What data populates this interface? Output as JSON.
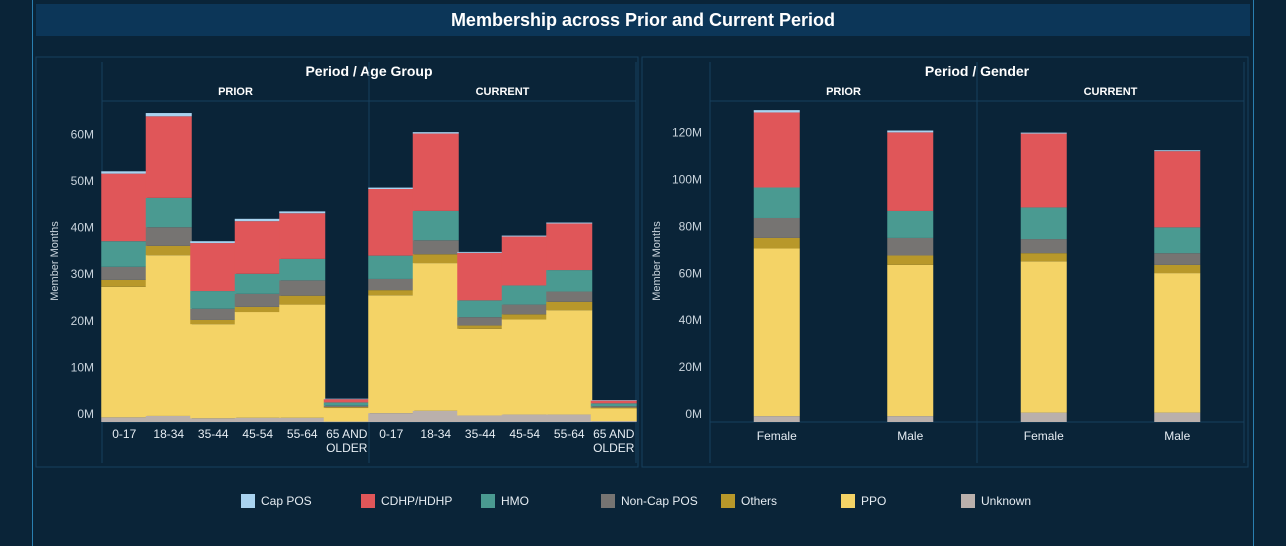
{
  "title": "Membership across Prior and Current Period",
  "colors": {
    "Cap POS": "#a9d3f0",
    "CDHP/HDHP": "#e05659",
    "HMO": "#4a9a91",
    "Non-Cap POS": "#767472",
    "Others": "#b8982a",
    "PPO": "#f4d366",
    "Unknown": "#bab0ac"
  },
  "legend": [
    "Cap POS",
    "CDHP/HDHP",
    "HMO",
    "Non-Cap POS",
    "Others",
    "PPO",
    "Unknown"
  ],
  "chart_data": [
    {
      "type": "bar",
      "stacked": true,
      "title": "Period / Age Group",
      "ylabel": "Member Months",
      "ylim": [
        0,
        68
      ],
      "yticks": [
        "0M",
        "10M",
        "20M",
        "30M",
        "40M",
        "50M",
        "60M"
      ],
      "panels": [
        {
          "label": "PRIOR",
          "categories": [
            "0-17",
            "18-34",
            "35-44",
            "45-54",
            "55-64",
            "65 AND OLDER"
          ],
          "series": [
            {
              "name": "Unknown",
              "values": [
                1.0,
                1.3,
                0.8,
                0.9,
                0.9,
                0.1
              ]
            },
            {
              "name": "PPO",
              "values": [
                28.0,
                34.5,
                20.2,
                22.7,
                24.3,
                2.9
              ]
            },
            {
              "name": "Others",
              "values": [
                1.5,
                2.0,
                0.9,
                1.1,
                1.9,
                0.2
              ]
            },
            {
              "name": "Non-Cap POS",
              "values": [
                2.8,
                4.0,
                2.4,
                2.8,
                3.3,
                0.3
              ]
            },
            {
              "name": "HMO",
              "values": [
                5.5,
                6.3,
                3.8,
                4.3,
                4.6,
                0.7
              ]
            },
            {
              "name": "CDHP/HDHP",
              "values": [
                14.5,
                17.5,
                10.3,
                11.3,
                9.8,
                0.7
              ]
            },
            {
              "name": "Cap POS",
              "values": [
                0.5,
                0.7,
                0.4,
                0.5,
                0.4,
                0.1
              ]
            }
          ]
        },
        {
          "label": "CURRENT",
          "categories": [
            "0-17",
            "18-34",
            "35-44",
            "45-54",
            "55-64",
            "65 AND OLDER"
          ],
          "series": [
            {
              "name": "Unknown",
              "values": [
                1.9,
                2.4,
                1.4,
                1.6,
                1.6,
                0.2
              ]
            },
            {
              "name": "PPO",
              "values": [
                25.3,
                31.7,
                18.6,
                20.4,
                22.4,
                2.7
              ]
            },
            {
              "name": "Others",
              "values": [
                1.1,
                1.9,
                0.7,
                1.1,
                1.8,
                0.2
              ]
            },
            {
              "name": "Non-Cap POS",
              "values": [
                2.4,
                3.0,
                1.8,
                2.1,
                2.2,
                0.3
              ]
            },
            {
              "name": "HMO",
              "values": [
                5.0,
                6.3,
                3.6,
                4.1,
                4.6,
                0.6
              ]
            },
            {
              "name": "CDHP/HDHP",
              "values": [
                14.3,
                16.6,
                10.2,
                10.5,
                10.0,
                0.6
              ]
            },
            {
              "name": "Cap POS",
              "values": [
                0.3,
                0.3,
                0.2,
                0.2,
                0.2,
                0.1
              ]
            }
          ]
        }
      ]
    },
    {
      "type": "bar",
      "stacked": true,
      "title": "Period / Gender",
      "ylabel": "Member Months",
      "ylim": [
        0,
        140
      ],
      "yticks": [
        "0M",
        "20M",
        "40M",
        "60M",
        "80M",
        "100M",
        "120M"
      ],
      "panels": [
        {
          "label": "PRIOR",
          "categories": [
            "Female",
            "Male"
          ],
          "series": [
            {
              "name": "Unknown",
              "values": [
                2.5,
                2.5
              ]
            },
            {
              "name": "PPO",
              "values": [
                71.5,
                64.5
              ]
            },
            {
              "name": "Others",
              "values": [
                4.5,
                4.0
              ]
            },
            {
              "name": "Non-Cap POS",
              "values": [
                8.5,
                7.5
              ]
            },
            {
              "name": "HMO",
              "values": [
                13.0,
                11.5
              ]
            },
            {
              "name": "CDHP/HDHP",
              "values": [
                32.0,
                33.5
              ]
            },
            {
              "name": "Cap POS",
              "values": [
                1.0,
                0.8
              ]
            }
          ]
        },
        {
          "label": "CURRENT",
          "categories": [
            "Female",
            "Male"
          ],
          "series": [
            {
              "name": "Unknown",
              "values": [
                4.0,
                4.0
              ]
            },
            {
              "name": "PPO",
              "values": [
                64.5,
                59.5
              ]
            },
            {
              "name": "Others",
              "values": [
                3.5,
                3.5
              ]
            },
            {
              "name": "Non-Cap POS",
              "values": [
                6.0,
                5.0
              ]
            },
            {
              "name": "HMO",
              "values": [
                13.5,
                11.0
              ]
            },
            {
              "name": "CDHP/HDHP",
              "values": [
                31.5,
                32.5
              ]
            },
            {
              "name": "Cap POS",
              "values": [
                0.4,
                0.4
              ]
            }
          ]
        }
      ]
    }
  ]
}
